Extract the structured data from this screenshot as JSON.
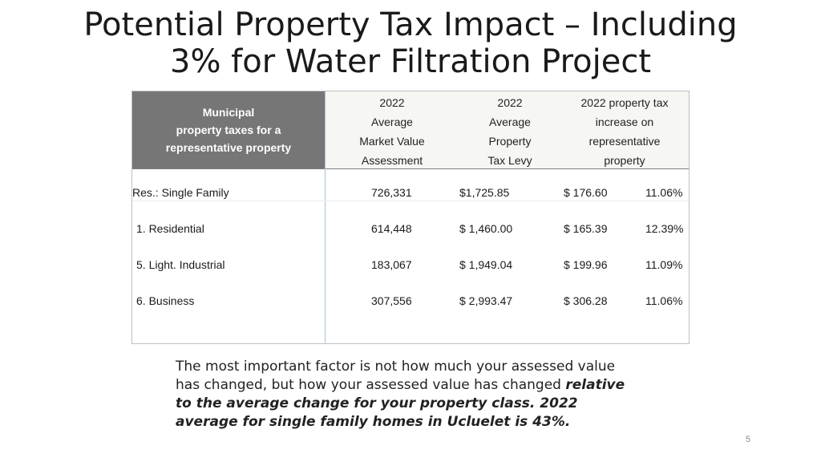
{
  "slide": {
    "title_line1": "Potential Property Tax Impact – Including",
    "title_line2": "3% for Water Filtration Project",
    "page_number": "5"
  },
  "table": {
    "header_left": [
      "Municipal",
      "property taxes for a",
      "representative property"
    ],
    "columns": [
      [
        "2022",
        "Average",
        "Market Value",
        "Assessment"
      ],
      [
        "2022",
        "Average",
        "Property",
        "Tax Levy"
      ],
      [
        "2022 property tax",
        "increase on",
        "representative",
        "property"
      ]
    ],
    "rows": [
      {
        "label": "Res.: Single Family",
        "assessment": "726,331",
        "levy": "$1,725.85",
        "increase": "$ 176.60",
        "percent": "11.06%"
      },
      {
        "label": "1. Residential",
        "assessment": "614,448",
        "levy": "$ 1,460.00",
        "increase": "$ 165.39",
        "percent": "12.39%"
      },
      {
        "label": "5. Light. Industrial",
        "assessment": "183,067",
        "levy": "$ 1,949.04",
        "increase": "$ 199.96",
        "percent": "11.09%"
      },
      {
        "label": "6. Business",
        "assessment": "307,556",
        "levy": "$ 2,993.47",
        "increase": "$ 306.28",
        "percent": "11.06%"
      }
    ]
  },
  "note": {
    "plain": "The most important factor is not how much your assessed value has changed, but how your assessed value has changed ",
    "emphasis": "relative to the average change for your property class.  2022  average for single family homes in Ucluelet is 43%."
  }
}
